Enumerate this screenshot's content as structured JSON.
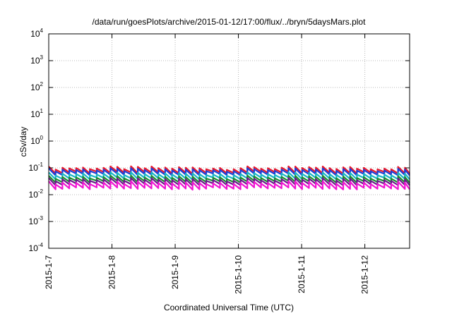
{
  "chart_data": {
    "type": "line",
    "title": "/data/run/goesPlots/archive/2015-01-12/17:00/flux/../bryn/5daysMars.plot",
    "xlabel": "Coordinated Universal Time (UTC)",
    "ylabel": "cSv/day",
    "yscale": "log",
    "ylim": [
      0.0001,
      10000
    ],
    "y_ticks": [
      {
        "base": "10",
        "exp": "-4"
      },
      {
        "base": "10",
        "exp": "-3"
      },
      {
        "base": "10",
        "exp": "-2"
      },
      {
        "base": "10",
        "exp": "-1"
      },
      {
        "base": "10",
        "exp": "0"
      },
      {
        "base": "10",
        "exp": "1"
      },
      {
        "base": "10",
        "exp": "2"
      },
      {
        "base": "10",
        "exp": "3"
      },
      {
        "base": "10",
        "exp": "4"
      }
    ],
    "x_ticks": [
      "2015-1-7",
      "2015-1-8",
      "2015-1-9",
      "2015-1-10",
      "2015-1-11",
      "2015-1-12"
    ],
    "xlim": [
      "2015-01-07 00:00",
      "2015-01-12 17:00"
    ],
    "grid": true,
    "legend": "none",
    "sawtooth_period_hours": 2.6,
    "series": [
      {
        "color": "#e8192c",
        "peak": 0.1,
        "trough": 0.066
      },
      {
        "color": "#1f3fd6",
        "peak": 0.085,
        "trough": 0.056
      },
      {
        "color": "#18b5c4",
        "peak": 0.06,
        "trough": 0.04
      },
      {
        "color": "#1a8f2e",
        "peak": 0.045,
        "trough": 0.03
      },
      {
        "color": "#6a1a8a",
        "peak": 0.037,
        "trough": 0.024
      },
      {
        "color": "#f016d2",
        "peak": 0.028,
        "trough": 0.017
      }
    ]
  }
}
